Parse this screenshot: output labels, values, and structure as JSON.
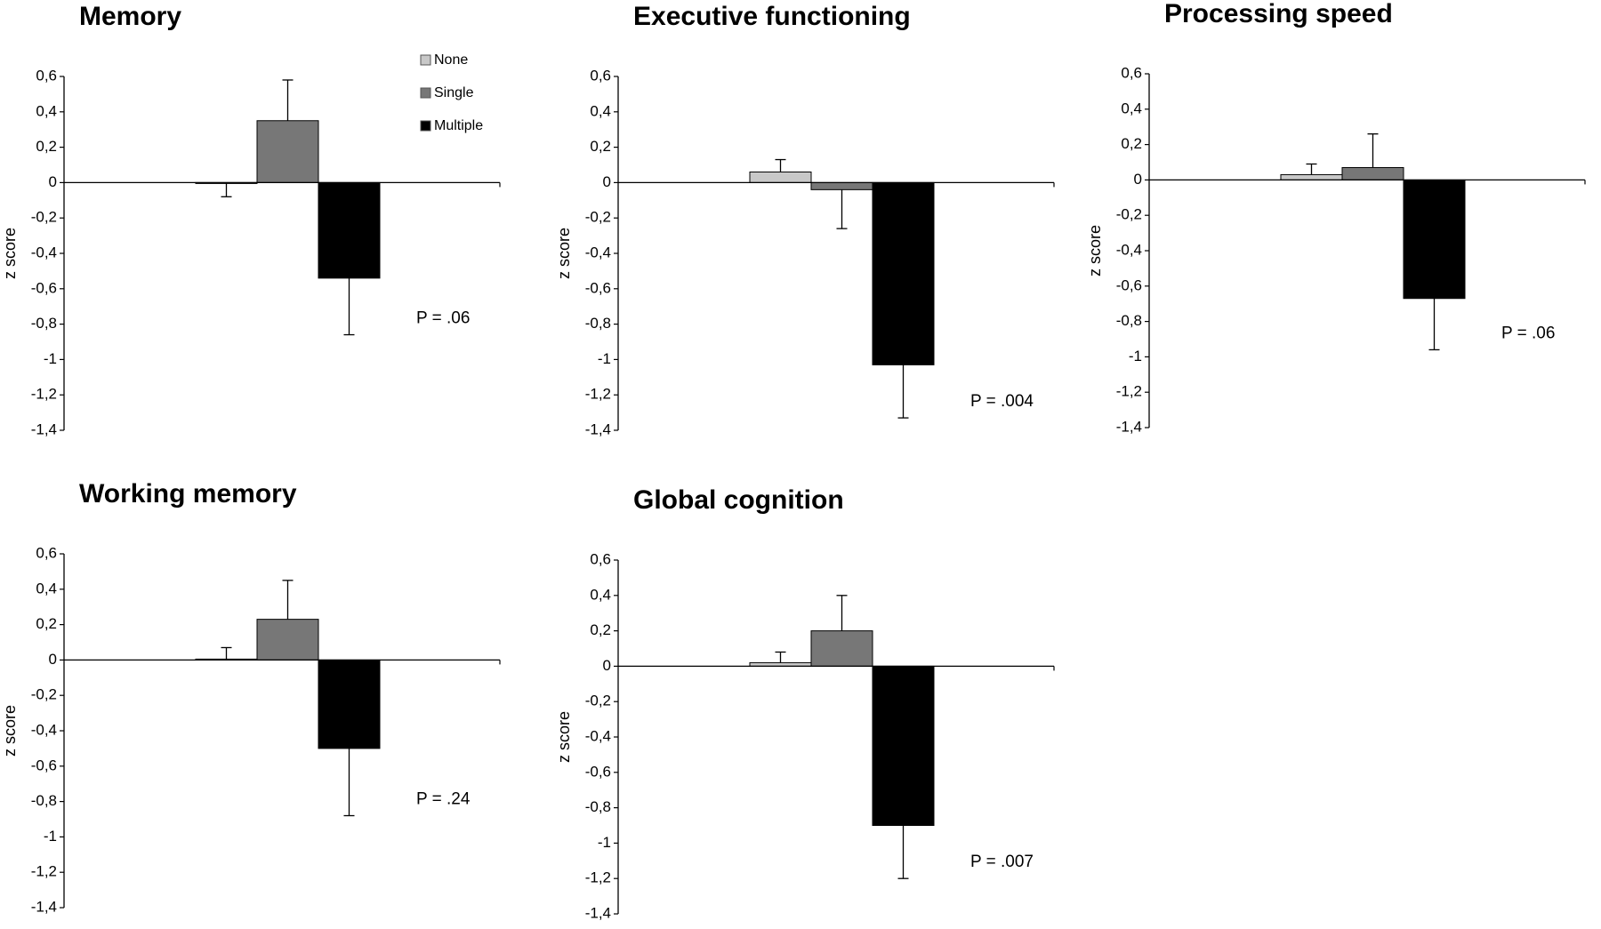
{
  "chart_data": [
    {
      "type": "bar",
      "title": "Memory",
      "ylabel": "z score",
      "annotation": "P = .06",
      "legend": true,
      "ylim": [
        -1.4,
        0.6
      ],
      "yticks": [
        {
          "value": 0.6,
          "label": "0,6"
        },
        {
          "value": 0.4,
          "label": "0,4"
        },
        {
          "value": 0.2,
          "label": "0,2"
        },
        0,
        {
          "value": -0.2,
          "label": "-0,2"
        },
        {
          "value": -0.4,
          "label": "-0,4"
        },
        {
          "value": -0.6,
          "label": "-0,6"
        },
        {
          "value": -0.8,
          "label": "-0,8"
        },
        -1,
        {
          "value": -1.2,
          "label": "-1,2"
        },
        {
          "value": -1.4,
          "label": "-1,4"
        }
      ],
      "series": [
        {
          "name": "None",
          "color": "#c8c8c8",
          "values": [
            -0.005
          ],
          "errors": [
            0.075
          ]
        },
        {
          "name": "Single",
          "color": "#777777",
          "values": [
            0.35
          ],
          "errors": [
            0.23
          ]
        },
        {
          "name": "Multiple",
          "color": "#000000",
          "values": [
            -0.54
          ],
          "errors": [
            0.32
          ]
        }
      ]
    },
    {
      "type": "bar",
      "title": "Executive functioning",
      "ylabel": "z score",
      "annotation": "P = .004",
      "legend": false,
      "ylim": [
        -1.4,
        0.6
      ],
      "yticks": [
        {
          "value": 0.6,
          "label": "0,6"
        },
        {
          "value": 0.4,
          "label": "0,4"
        },
        {
          "value": 0.2,
          "label": "0,2"
        },
        0,
        {
          "value": -0.2,
          "label": "-0,2"
        },
        {
          "value": -0.4,
          "label": "-0,4"
        },
        {
          "value": -0.6,
          "label": "-0,6"
        },
        {
          "value": -0.8,
          "label": "-0,8"
        },
        -1,
        {
          "value": -1.2,
          "label": "-1,2"
        },
        {
          "value": -1.4,
          "label": "-1,4"
        }
      ],
      "series": [
        {
          "color": "#c8c8c8",
          "values": [
            0.06
          ],
          "errors": [
            0.07
          ]
        },
        {
          "color": "#777777",
          "values": [
            -0.04
          ],
          "errors": [
            0.22
          ]
        },
        {
          "color": "#000000",
          "values": [
            -1.03
          ],
          "errors": [
            0.3
          ]
        }
      ]
    },
    {
      "type": "bar",
      "title": "Processing speed",
      "ylabel": "z score",
      "annotation": "P = .06",
      "legend": false,
      "ylim": [
        -1.4,
        0.6
      ],
      "yticks": [
        {
          "value": 0.6,
          "label": "0,6"
        },
        {
          "value": 0.4,
          "label": "0,4"
        },
        {
          "value": 0.2,
          "label": "0,2"
        },
        0,
        {
          "value": -0.2,
          "label": "-0,2"
        },
        {
          "value": -0.4,
          "label": "-0,4"
        },
        {
          "value": -0.6,
          "label": "-0,6"
        },
        {
          "value": -0.8,
          "label": "-0,8"
        },
        -1,
        {
          "value": -1.2,
          "label": "-1,2"
        },
        {
          "value": -1.4,
          "label": "-1,4"
        }
      ],
      "series": [
        {
          "color": "#c8c8c8",
          "values": [
            0.03
          ],
          "errors": [
            0.06
          ]
        },
        {
          "color": "#777777",
          "values": [
            0.07
          ],
          "errors": [
            0.19
          ]
        },
        {
          "color": "#000000",
          "values": [
            -0.67
          ],
          "errors": [
            0.29
          ]
        }
      ]
    },
    {
      "type": "bar",
      "title": "Working memory",
      "ylabel": "z score",
      "annotation": "P = .24",
      "legend": false,
      "ylim": [
        -1.4,
        0.6
      ],
      "yticks": [
        {
          "value": 0.6,
          "label": "0,6"
        },
        {
          "value": 0.4,
          "label": "0,4"
        },
        {
          "value": 0.2,
          "label": "0,2"
        },
        0,
        {
          "value": -0.2,
          "label": "-0,2"
        },
        {
          "value": -0.4,
          "label": "-0,4"
        },
        {
          "value": -0.6,
          "label": "-0,6"
        },
        {
          "value": -0.8,
          "label": "-0,8"
        },
        -1,
        {
          "value": -1.2,
          "label": "-1,2"
        },
        {
          "value": -1.4,
          "label": "-1,4"
        }
      ],
      "series": [
        {
          "color": "#c8c8c8",
          "values": [
            0.005
          ],
          "errors": [
            0.065
          ]
        },
        {
          "color": "#777777",
          "values": [
            0.23
          ],
          "errors": [
            0.22
          ]
        },
        {
          "color": "#000000",
          "values": [
            -0.5
          ],
          "errors": [
            0.38
          ]
        }
      ]
    },
    {
      "type": "bar",
      "title": "Global cognition",
      "ylabel": "z score",
      "annotation": "P = .007",
      "legend": false,
      "ylim": [
        -1.4,
        0.6
      ],
      "yticks": [
        {
          "value": 0.6,
          "label": "0,6"
        },
        {
          "value": 0.4,
          "label": "0,4"
        },
        {
          "value": 0.2,
          "label": "0,2"
        },
        0,
        {
          "value": -0.2,
          "label": "-0,2"
        },
        {
          "value": -0.4,
          "label": "-0,4"
        },
        {
          "value": -0.6,
          "label": "-0,6"
        },
        {
          "value": -0.8,
          "label": "-0,8"
        },
        -1,
        {
          "value": -1.2,
          "label": "-1,2"
        },
        {
          "value": -1.4,
          "label": "-1,4"
        }
      ],
      "series": [
        {
          "color": "#c8c8c8",
          "values": [
            0.02
          ],
          "errors": [
            0.06
          ]
        },
        {
          "color": "#777777",
          "values": [
            0.2
          ],
          "errors": [
            0.2
          ]
        },
        {
          "color": "#000000",
          "values": [
            -0.9
          ],
          "errors": [
            0.3
          ]
        }
      ]
    }
  ]
}
